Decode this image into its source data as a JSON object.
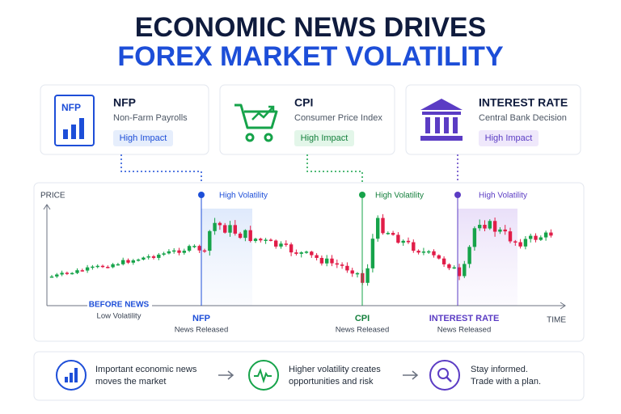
{
  "header": {
    "title_line1": "ECONOMIC NEWS DRIVES",
    "title_line2": "FOREX MARKET VOLATILITY"
  },
  "cards": [
    {
      "icon": "NFP",
      "title": "NFP",
      "subtitle": "Non-Farm Payrolls",
      "badge": "High Impact"
    },
    {
      "title": "CPI",
      "subtitle": "Consumer Price Index",
      "badge": "High Impact"
    },
    {
      "title": "INTEREST RATE",
      "subtitle": "Central Bank Decision",
      "badge": "High Impact"
    }
  ],
  "chart": {
    "y_label": "PRICE",
    "x_label": "TIME",
    "before_label": "BEFORE NEWS",
    "before_sub": "Low Volatility",
    "events": [
      {
        "label": "NFP",
        "volatility": "High Volatility",
        "sub": "News Released"
      },
      {
        "label": "CPI",
        "volatility": "High Volatility",
        "sub": "News Released"
      },
      {
        "label": "INTEREST RATE",
        "volatility": "High Volatility",
        "sub": "News Released"
      }
    ]
  },
  "footer": [
    {
      "line1": "Important economic news",
      "line2": "moves the market"
    },
    {
      "line1": "Higher volatility creates",
      "line2": "opportunities and risk"
    },
    {
      "line1": "Stay informed.",
      "line2": "Trade with a plan."
    }
  ]
}
